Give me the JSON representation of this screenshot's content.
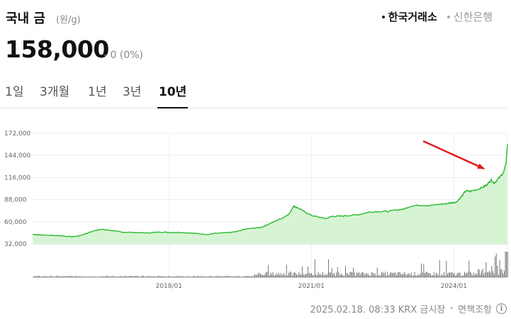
{
  "header": {
    "title": "국내 금",
    "unit": "(원/g)"
  },
  "markets": [
    {
      "label": "한국거래소",
      "active": true
    },
    {
      "label": "신한은행",
      "active": false
    }
  ],
  "price": {
    "value": "158,000",
    "change": "- 0 (0%)"
  },
  "tabs": [
    {
      "label": "1일",
      "active": false
    },
    {
      "label": "3개월",
      "active": false
    },
    {
      "label": "1년",
      "active": false
    },
    {
      "label": "3년",
      "active": false
    },
    {
      "label": "10년",
      "active": true
    }
  ],
  "chart_data": {
    "type": "area",
    "x_ticks": [
      "2018/01",
      "2021/01",
      "2024/01"
    ],
    "y_ticks": [
      "172,000",
      "144,000",
      "116,000",
      "88,000",
      "60,000",
      "32,000"
    ],
    "ylim": [
      32000,
      172000
    ],
    "xlim": [
      "2015/02",
      "2025/02"
    ],
    "grid": true,
    "line_color": "#22b526",
    "fill_color": "#d6f4d3",
    "annotation": "red arrow pointing to late-2024 price surge",
    "series": [
      {
        "values": [
          [
            2015.13,
            44000
          ],
          [
            2015.4,
            43000
          ],
          [
            2015.7,
            42500
          ],
          [
            2015.95,
            41000
          ],
          [
            2016.1,
            42000
          ],
          [
            2016.25,
            45000
          ],
          [
            2016.4,
            48000
          ],
          [
            2016.55,
            50500
          ],
          [
            2016.7,
            49500
          ],
          [
            2016.85,
            48500
          ],
          [
            2017.0,
            47000
          ],
          [
            2017.2,
            46500
          ],
          [
            2017.4,
            46000
          ],
          [
            2017.6,
            46000
          ],
          [
            2017.8,
            47000
          ],
          [
            2018.0,
            46500
          ],
          [
            2018.2,
            46500
          ],
          [
            2018.4,
            46000
          ],
          [
            2018.6,
            45000
          ],
          [
            2018.8,
            44000
          ],
          [
            2019.0,
            45500
          ],
          [
            2019.2,
            46000
          ],
          [
            2019.4,
            47000
          ],
          [
            2019.6,
            50500
          ],
          [
            2019.8,
            52000
          ],
          [
            2019.95,
            53000
          ],
          [
            2020.1,
            57000
          ],
          [
            2020.25,
            61000
          ],
          [
            2020.4,
            65000
          ],
          [
            2020.55,
            71000
          ],
          [
            2020.62,
            80000
          ],
          [
            2020.7,
            78000
          ],
          [
            2020.85,
            73000
          ],
          [
            2021.0,
            68000
          ],
          [
            2021.15,
            66000
          ],
          [
            2021.3,
            64000
          ],
          [
            2021.45,
            67000
          ],
          [
            2021.6,
            67000
          ],
          [
            2021.8,
            68000
          ],
          [
            2022.0,
            69000
          ],
          [
            2022.2,
            72000
          ],
          [
            2022.4,
            73000
          ],
          [
            2022.6,
            73000
          ],
          [
            2022.8,
            75000
          ],
          [
            2022.95,
            76000
          ],
          [
            2023.1,
            80000
          ],
          [
            2023.3,
            81000
          ],
          [
            2023.5,
            80500
          ],
          [
            2023.7,
            82000
          ],
          [
            2023.85,
            83000
          ],
          [
            2023.95,
            84000
          ],
          [
            2024.05,
            85000
          ],
          [
            2024.15,
            91000
          ],
          [
            2024.25,
            99000
          ],
          [
            2024.35,
            98500
          ],
          [
            2024.5,
            101000
          ],
          [
            2024.62,
            104000
          ],
          [
            2024.7,
            107000
          ],
          [
            2024.78,
            113000
          ],
          [
            2024.85,
            109000
          ],
          [
            2024.95,
            115000
          ],
          [
            2025.05,
            123000
          ],
          [
            2025.1,
            135000
          ],
          [
            2025.13,
            158000
          ]
        ]
      }
    ],
    "volume": {
      "type": "bar",
      "color": "#666666"
    }
  },
  "footer": {
    "timestamp": "2025.02.18. 08:33 KRX 금시장",
    "separator": "•",
    "disclaimer": "면책조항",
    "info_icon": "i"
  }
}
